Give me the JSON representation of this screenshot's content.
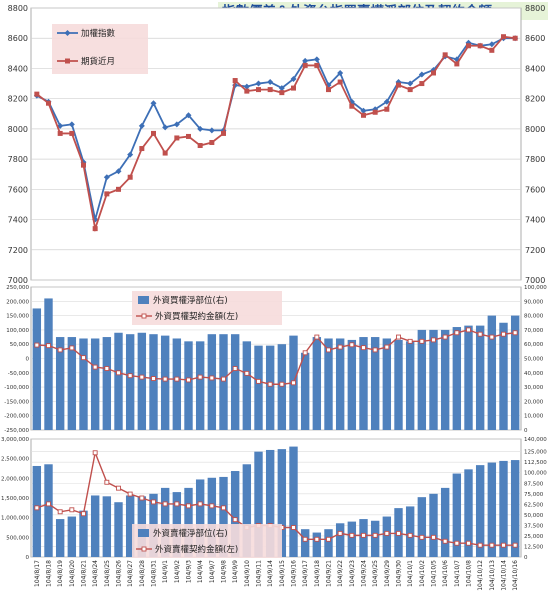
{
  "chart_data": [
    {
      "type": "line",
      "title": "指數價差＆外資台指買賣權淨部位及契約金額",
      "ylim": [
        7000,
        8800
      ],
      "yticks": [
        7000,
        7200,
        7400,
        7600,
        7800,
        8000,
        8200,
        8400,
        8600,
        8800
      ],
      "grid": true,
      "legend_position": "top-left",
      "series": [
        {
          "name": "加權指數",
          "color": "#3d6fb6",
          "marker": "diamond",
          "values": [
            8220,
            8180,
            8020,
            8030,
            7780,
            7400,
            7680,
            7720,
            7830,
            8020,
            8170,
            8010,
            8030,
            8090,
            8000,
            7990,
            7990,
            8290,
            8280,
            8300,
            8310,
            8270,
            8330,
            8450,
            8460,
            8290,
            8370,
            8180,
            8120,
            8130,
            8180,
            8310,
            8300,
            8360,
            8390,
            8480,
            8460,
            8570,
            8550,
            8560,
            8600,
            8600
          ]
        },
        {
          "name": "期貨近月",
          "color": "#c0504d",
          "marker": "square",
          "values": [
            8230,
            8170,
            7970,
            7970,
            7760,
            7340,
            7570,
            7600,
            7680,
            7870,
            7970,
            7840,
            7940,
            7950,
            7890,
            7910,
            7970,
            8320,
            8250,
            8260,
            8260,
            8240,
            8270,
            8420,
            8420,
            8260,
            8310,
            8150,
            8090,
            8110,
            8130,
            8290,
            8260,
            8300,
            8370,
            8490,
            8430,
            8550,
            8550,
            8520,
            8610,
            8600
          ]
        }
      ]
    },
    {
      "type": "bar",
      "left_ylim": [
        -250000,
        250000
      ],
      "left_yticks": [
        -250000,
        -200000,
        -150000,
        -100000,
        -50000,
        0,
        50000,
        100000,
        150000,
        200000,
        250000
      ],
      "right_ylim": [
        0,
        100000
      ],
      "right_yticks": [
        0,
        10000,
        20000,
        30000,
        40000,
        50000,
        60000,
        70000,
        80000,
        90000,
        100000
      ],
      "legend_position": "top-left",
      "series": [
        {
          "name": "外資買權淨部位(右)",
          "color": "#4f81bd",
          "axis": "right",
          "values": [
            85000,
            92000,
            65000,
            65000,
            64000,
            64000,
            65000,
            68000,
            67000,
            68000,
            67000,
            66000,
            64000,
            62000,
            62000,
            67000,
            67000,
            67000,
            62000,
            59000,
            59000,
            60000,
            66000,
            54000,
            65000,
            64000,
            64000,
            63000,
            65000,
            65000,
            64000,
            63000,
            62000,
            70000,
            70000,
            70000,
            72000,
            73000,
            73000,
            80000,
            75000,
            80000
          ]
        },
        {
          "name": "外資買權契約金額(左)",
          "color": "#c0504d",
          "axis": "left",
          "values": [
            47000,
            45000,
            30000,
            37000,
            3000,
            -30000,
            -35000,
            -50000,
            -60000,
            -65000,
            -70000,
            -72000,
            -72000,
            -75000,
            -65000,
            -68000,
            -72000,
            -35000,
            -52000,
            -80000,
            -90000,
            -90000,
            -85000,
            20000,
            75000,
            30000,
            40000,
            48000,
            38000,
            30000,
            40000,
            75000,
            60000,
            60000,
            65000,
            75000,
            90000,
            100000,
            85000,
            75000,
            85000,
            90000
          ]
        }
      ]
    },
    {
      "type": "bar",
      "left_ylim": [
        0,
        3000000
      ],
      "left_yticks": [
        0,
        500000,
        1000000,
        1500000,
        2000000,
        2500000,
        3000000
      ],
      "right_ylim": [
        0,
        140000
      ],
      "right_yticks": [
        0,
        12500,
        25000,
        37500,
        50000,
        62500,
        75000,
        87500,
        100000,
        112500,
        125000,
        140000
      ],
      "legend_position": "bottom-left",
      "series": [
        {
          "name": "外資賣權淨部位(右)",
          "color": "#4f81bd",
          "axis": "right",
          "values": [
            108000,
            110000,
            45000,
            48000,
            55000,
            73000,
            72000,
            65000,
            73000,
            72000,
            75000,
            82000,
            77000,
            82000,
            92000,
            94000,
            95000,
            102000,
            110000,
            125000,
            127000,
            128000,
            131000,
            33000,
            29000,
            33000,
            40000,
            42000,
            45000,
            43000,
            48000,
            58000,
            60000,
            71000,
            75000,
            82000,
            99000,
            104000,
            109000,
            112000,
            114000,
            115000
          ]
        },
        {
          "name": "外資賣權契約金額(左)",
          "color": "#c0504d",
          "axis": "left",
          "values": [
            1250000,
            1350000,
            1150000,
            1200000,
            1100000,
            2650000,
            1900000,
            1750000,
            1600000,
            1500000,
            1400000,
            1350000,
            1350000,
            1300000,
            1350000,
            1300000,
            1250000,
            950000,
            750000,
            800000,
            800000,
            750000,
            750000,
            450000,
            450000,
            450000,
            600000,
            550000,
            550000,
            550000,
            600000,
            600000,
            550000,
            500000,
            500000,
            400000,
            350000,
            350000,
            300000,
            300000,
            300000,
            300000
          ]
        }
      ]
    }
  ],
  "dates": [
    "104/8/17",
    "104/8/18",
    "104/8/19",
    "104/8/20",
    "104/8/21",
    "104/8/24",
    "104/8/25",
    "104/8/26",
    "104/8/27",
    "104/8/28",
    "104/8/31",
    "104/9/1",
    "104/9/2",
    "104/9/3",
    "104/9/4",
    "104/9/7",
    "104/9/8",
    "104/9/9",
    "104/9/10",
    "104/9/11",
    "104/9/14",
    "104/9/15",
    "104/9/16",
    "104/9/17",
    "104/9/18",
    "104/9/21",
    "104/9/22",
    "104/9/23",
    "104/9/24",
    "104/9/25",
    "104/9/29",
    "104/9/30",
    "104/10/1",
    "104/10/2",
    "104/10/5",
    "104/10/6",
    "104/10/7",
    "104/10/8",
    "104/10/12",
    "104/10/13",
    "104/10/14",
    "104/10/16"
  ],
  "labels": {
    "title": "指數價差＆外資台指買賣權淨部位及契約金額",
    "legend1_a": "加權指數",
    "legend1_b": "期貨近月",
    "legend2_a": "外資買權淨部位(右)",
    "legend2_b": "外資買權契約金額(左)",
    "legend3_a": "外資賣權淨部位(右)",
    "legend3_b": "外資賣權契約金額(左)"
  }
}
